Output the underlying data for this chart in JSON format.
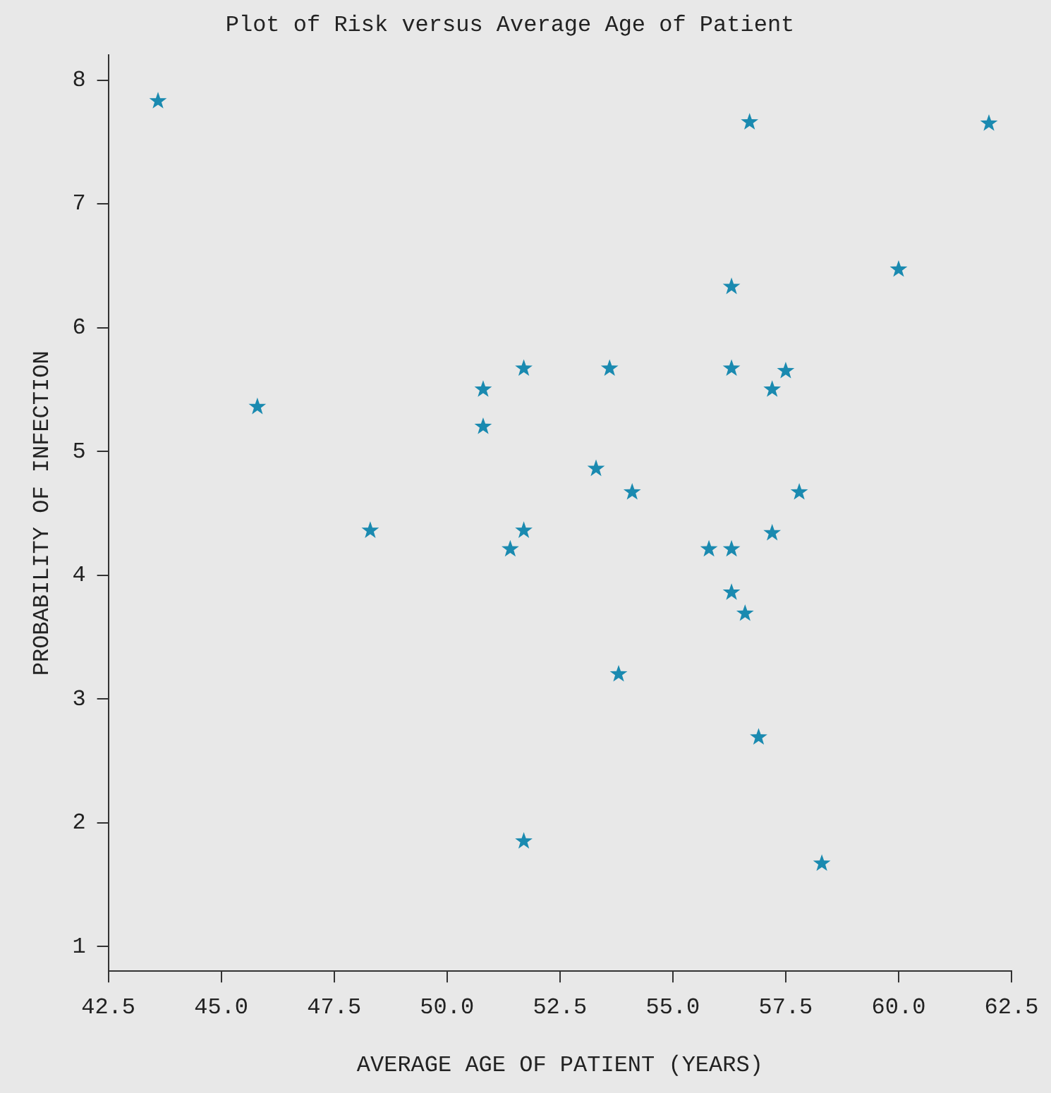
{
  "chart_data": {
    "type": "scatter",
    "title": "Plot of Risk versus Average Age of Patient",
    "xlabel": "AVERAGE AGE OF PATIENT (YEARS)",
    "ylabel": "PROBABILITY OF INFECTION",
    "x": [
      43.6,
      45.8,
      48.3,
      50.8,
      50.8,
      51.7,
      51.7,
      51.4,
      51.7,
      53.3,
      53.6,
      53.8,
      54.1,
      55.8,
      56.3,
      56.3,
      56.3,
      56.3,
      56.6,
      56.7,
      56.9,
      57.2,
      57.2,
      57.5,
      57.8,
      58.3,
      60.0,
      62.0
    ],
    "values": [
      7.83,
      5.36,
      4.36,
      5.5,
      5.2,
      5.67,
      4.36,
      4.21,
      1.85,
      4.86,
      5.67,
      3.2,
      4.67,
      4.21,
      4.21,
      3.86,
      5.67,
      6.33,
      3.69,
      7.66,
      2.69,
      5.5,
      4.34,
      5.65,
      4.67,
      1.67,
      6.47,
      7.65
    ],
    "color": "#1a8ab0",
    "marker": "star",
    "xlim": [
      42.5,
      62.5
    ],
    "xticks": [
      {
        "value": 42.5,
        "label": "42.5"
      },
      {
        "value": 45,
        "label": "45.0"
      },
      {
        "value": 47.5,
        "label": "47.5"
      },
      {
        "value": 50,
        "label": "50.0"
      },
      {
        "value": 52.5,
        "label": "52.5"
      },
      {
        "value": 55,
        "label": "55.0"
      },
      {
        "value": 57.5,
        "label": "57.5"
      },
      {
        "value": 60,
        "label": "60.0"
      },
      {
        "value": 62.5,
        "label": "62.5"
      }
    ],
    "ylim": [
      0.8,
      8.2
    ],
    "yticks": [
      1,
      2,
      3,
      4,
      5,
      6,
      7,
      8
    ],
    "grid": false,
    "legend": false
  }
}
